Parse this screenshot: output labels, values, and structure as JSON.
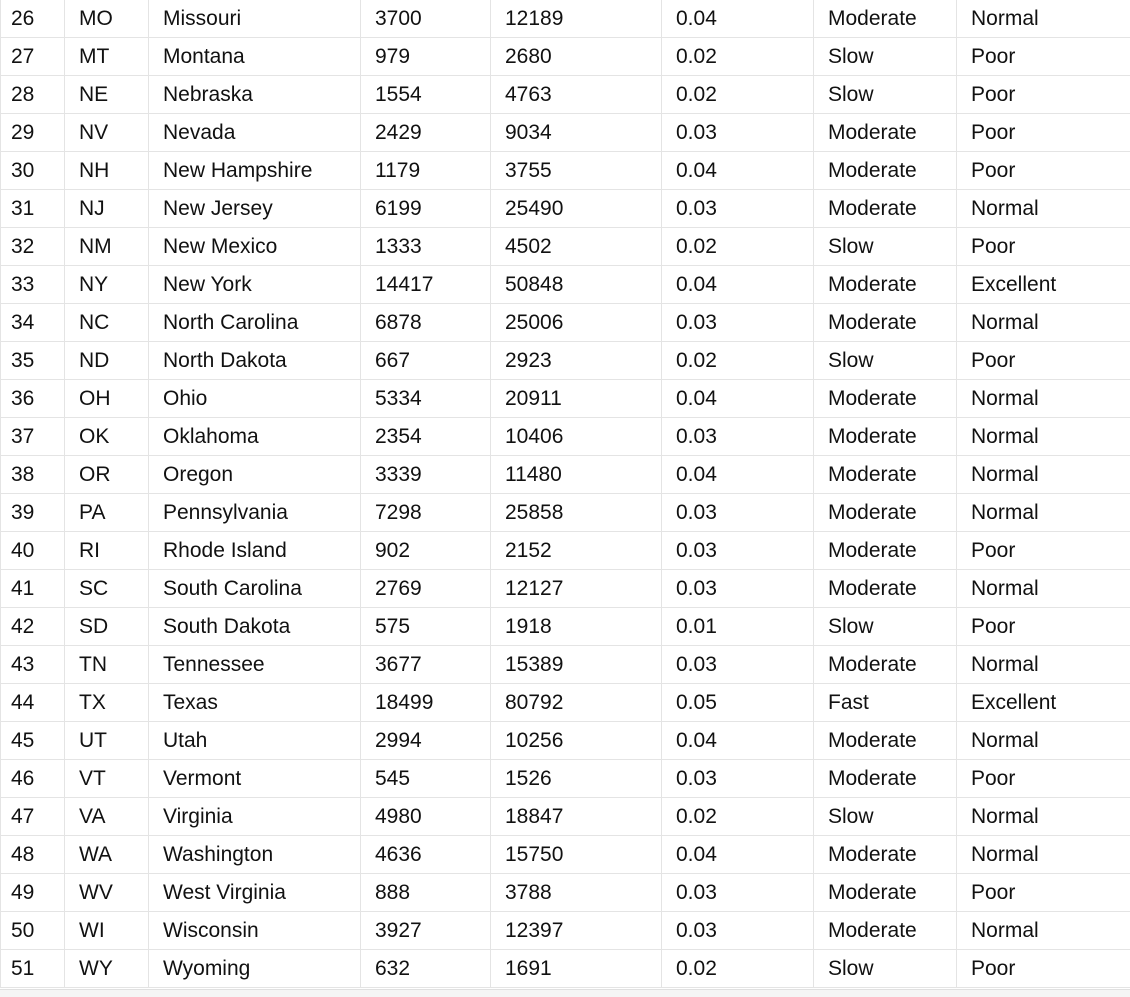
{
  "table": {
    "rows": [
      {
        "n": "26",
        "abbr": "MO",
        "state": "Missouri",
        "v1": "3700",
        "v2": "12189",
        "rate": "0.04",
        "speed": "Moderate",
        "quality": "Normal"
      },
      {
        "n": "27",
        "abbr": "MT",
        "state": "Montana",
        "v1": "979",
        "v2": "2680",
        "rate": "0.02",
        "speed": "Slow",
        "quality": "Poor"
      },
      {
        "n": "28",
        "abbr": "NE",
        "state": "Nebraska",
        "v1": "1554",
        "v2": "4763",
        "rate": "0.02",
        "speed": "Slow",
        "quality": "Poor"
      },
      {
        "n": "29",
        "abbr": "NV",
        "state": "Nevada",
        "v1": "2429",
        "v2": "9034",
        "rate": "0.03",
        "speed": "Moderate",
        "quality": "Poor"
      },
      {
        "n": "30",
        "abbr": "NH",
        "state": "New Hampshire",
        "v1": "1179",
        "v2": "3755",
        "rate": "0.04",
        "speed": "Moderate",
        "quality": "Poor"
      },
      {
        "n": "31",
        "abbr": "NJ",
        "state": "New Jersey",
        "v1": "6199",
        "v2": "25490",
        "rate": "0.03",
        "speed": "Moderate",
        "quality": "Normal"
      },
      {
        "n": "32",
        "abbr": "NM",
        "state": "New Mexico",
        "v1": "1333",
        "v2": "4502",
        "rate": "0.02",
        "speed": "Slow",
        "quality": "Poor"
      },
      {
        "n": "33",
        "abbr": "NY",
        "state": "New York",
        "v1": "14417",
        "v2": "50848",
        "rate": "0.04",
        "speed": "Moderate",
        "quality": "Excellent"
      },
      {
        "n": "34",
        "abbr": "NC",
        "state": "North Carolina",
        "v1": "6878",
        "v2": "25006",
        "rate": "0.03",
        "speed": "Moderate",
        "quality": "Normal"
      },
      {
        "n": "35",
        "abbr": "ND",
        "state": "North Dakota",
        "v1": "667",
        "v2": "2923",
        "rate": "0.02",
        "speed": "Slow",
        "quality": "Poor"
      },
      {
        "n": "36",
        "abbr": "OH",
        "state": "Ohio",
        "v1": "5334",
        "v2": "20911",
        "rate": "0.04",
        "speed": "Moderate",
        "quality": "Normal"
      },
      {
        "n": "37",
        "abbr": "OK",
        "state": "Oklahoma",
        "v1": "2354",
        "v2": "10406",
        "rate": "0.03",
        "speed": "Moderate",
        "quality": "Normal"
      },
      {
        "n": "38",
        "abbr": "OR",
        "state": "Oregon",
        "v1": "3339",
        "v2": "11480",
        "rate": "0.04",
        "speed": "Moderate",
        "quality": "Normal"
      },
      {
        "n": "39",
        "abbr": "PA",
        "state": "Pennsylvania",
        "v1": "7298",
        "v2": "25858",
        "rate": "0.03",
        "speed": "Moderate",
        "quality": "Normal"
      },
      {
        "n": "40",
        "abbr": "RI",
        "state": "Rhode Island",
        "v1": "902",
        "v2": "2152",
        "rate": "0.03",
        "speed": "Moderate",
        "quality": "Poor"
      },
      {
        "n": "41",
        "abbr": "SC",
        "state": "South Carolina",
        "v1": "2769",
        "v2": "12127",
        "rate": "0.03",
        "speed": "Moderate",
        "quality": "Normal"
      },
      {
        "n": "42",
        "abbr": "SD",
        "state": "South Dakota",
        "v1": "575",
        "v2": "1918",
        "rate": "0.01",
        "speed": "Slow",
        "quality": "Poor"
      },
      {
        "n": "43",
        "abbr": "TN",
        "state": "Tennessee",
        "v1": "3677",
        "v2": "15389",
        "rate": "0.03",
        "speed": "Moderate",
        "quality": "Normal"
      },
      {
        "n": "44",
        "abbr": "TX",
        "state": "Texas",
        "v1": "18499",
        "v2": "80792",
        "rate": "0.05",
        "speed": "Fast",
        "quality": "Excellent"
      },
      {
        "n": "45",
        "abbr": "UT",
        "state": "Utah",
        "v1": "2994",
        "v2": "10256",
        "rate": "0.04",
        "speed": "Moderate",
        "quality": "Normal"
      },
      {
        "n": "46",
        "abbr": "VT",
        "state": "Vermont",
        "v1": "545",
        "v2": "1526",
        "rate": "0.03",
        "speed": "Moderate",
        "quality": "Poor"
      },
      {
        "n": "47",
        "abbr": "VA",
        "state": "Virginia",
        "v1": "4980",
        "v2": "18847",
        "rate": "0.02",
        "speed": "Slow",
        "quality": "Normal"
      },
      {
        "n": "48",
        "abbr": "WA",
        "state": "Washington",
        "v1": "4636",
        "v2": "15750",
        "rate": "0.04",
        "speed": "Moderate",
        "quality": "Normal"
      },
      {
        "n": "49",
        "abbr": "WV",
        "state": "West Virginia",
        "v1": "888",
        "v2": "3788",
        "rate": "0.03",
        "speed": "Moderate",
        "quality": "Poor"
      },
      {
        "n": "50",
        "abbr": "WI",
        "state": "Wisconsin",
        "v1": "3927",
        "v2": "12397",
        "rate": "0.03",
        "speed": "Moderate",
        "quality": "Normal"
      },
      {
        "n": "51",
        "abbr": "WY",
        "state": "Wyoming",
        "v1": "632",
        "v2": "1691",
        "rate": "0.02",
        "speed": "Slow",
        "quality": "Poor"
      }
    ]
  }
}
